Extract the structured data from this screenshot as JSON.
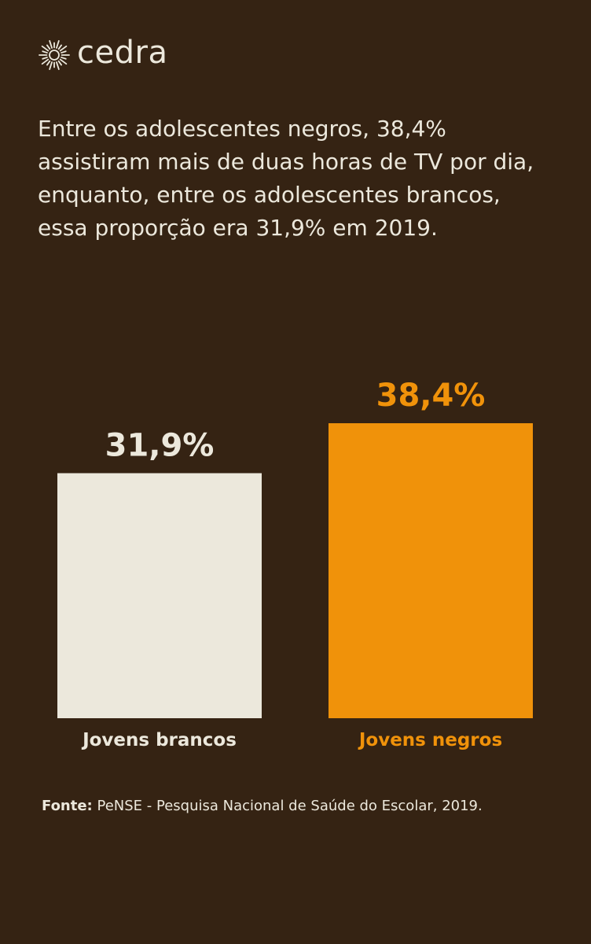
{
  "brand": {
    "name": "cedra",
    "icon": "sun-burst-icon"
  },
  "headline": "Entre os adolescentes negros, 38,4% assistiram mais de duas horas de TV por dia, enquanto, entre os adolescentes brancos, essa proporção era 31,9% em 2019.",
  "colors": {
    "background": "#352313",
    "text": "#ECE8DC",
    "accent": "#F0920A"
  },
  "chart_data": {
    "type": "bar",
    "categories": [
      "Jovens brancos",
      "Jovens negros"
    ],
    "values": [
      31.9,
      38.4
    ],
    "value_labels": [
      "31,9%",
      "38,4%"
    ],
    "bar_colors": [
      "#ECE8DC",
      "#F0920A"
    ],
    "ylim": [
      0,
      38.4
    ],
    "unit": "%",
    "grid": false
  },
  "source": {
    "label": "Fonte:",
    "text": "PeNSE - Pesquisa Nacional de Saúde do Escolar, 2019."
  }
}
